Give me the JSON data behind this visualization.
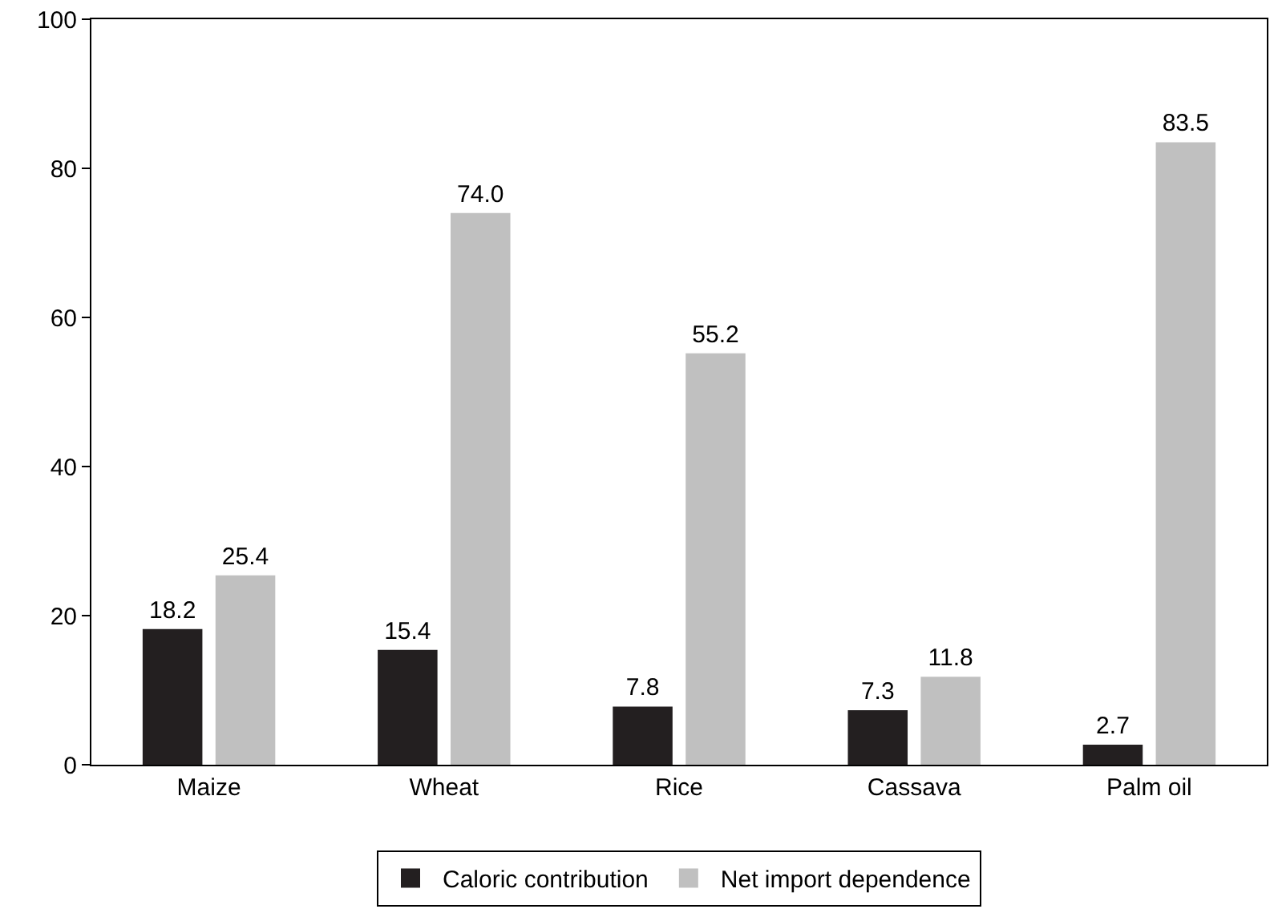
{
  "chart_data": {
    "type": "bar",
    "categories": [
      "Maize",
      "Wheat",
      "Rice",
      "Cassava",
      "Palm oil"
    ],
    "series": [
      {
        "name": "Caloric contribution",
        "color": "#231f20",
        "values": [
          18.2,
          15.4,
          7.8,
          7.3,
          2.7
        ],
        "value_labels": [
          "18.2",
          "15.4",
          "7.8",
          "7.3",
          "2.7"
        ]
      },
      {
        "name": "Net import dependence",
        "color": "#c0c0c0",
        "values": [
          25.4,
          74.0,
          55.2,
          11.8,
          83.5
        ],
        "value_labels": [
          "25.4",
          "74.0",
          "55.2",
          "11.8",
          "83.5"
        ]
      }
    ],
    "ylim": [
      0,
      100
    ],
    "yticks": [
      0,
      20,
      40,
      60,
      80,
      100
    ],
    "legend": "bottom"
  }
}
